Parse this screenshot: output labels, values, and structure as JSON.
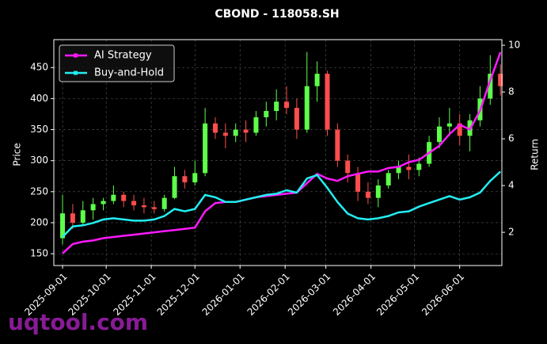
{
  "chart_data": {
    "type": "candlestick",
    "title": "CBOND - 118058.SH",
    "ylabel": "Price",
    "y2label": "Return",
    "watermark": "uqtool.com",
    "x": [
      "2025-09-01",
      "2025-09-08",
      "2025-09-15",
      "2025-09-22",
      "2025-09-29",
      "2025-10-06",
      "2025-10-13",
      "2025-10-20",
      "2025-10-27",
      "2025-11-03",
      "2025-11-10",
      "2025-11-17",
      "2025-11-24",
      "2025-12-01",
      "2025-12-08",
      "2025-12-15",
      "2025-12-22",
      "2025-12-29",
      "2026-01-05",
      "2026-01-12",
      "2026-01-19",
      "2026-01-26",
      "2026-02-02",
      "2026-02-09",
      "2026-02-16",
      "2026-02-23",
      "2026-03-02",
      "2026-03-09",
      "2026-03-16",
      "2026-03-23",
      "2026-03-30",
      "2026-04-06",
      "2026-04-13",
      "2026-04-20",
      "2026-04-27",
      "2026-05-04",
      "2026-05-11",
      "2026-05-18",
      "2026-05-25",
      "2026-06-01",
      "2026-06-08",
      "2026-06-15",
      "2026-06-22",
      "2026-06-29"
    ],
    "open": [
      175,
      215,
      200,
      220,
      230,
      235,
      245,
      235,
      228,
      225,
      222,
      240,
      275,
      265,
      280,
      360,
      345,
      340,
      350,
      345,
      370,
      380,
      395,
      385,
      350,
      420,
      440,
      350,
      300,
      280,
      250,
      240,
      260,
      280,
      290,
      285,
      295,
      330,
      355,
      360,
      340,
      365,
      400,
      440
    ],
    "high": [
      245,
      230,
      235,
      240,
      240,
      260,
      250,
      245,
      240,
      235,
      245,
      290,
      285,
      300,
      385,
      370,
      360,
      360,
      365,
      380,
      395,
      415,
      420,
      400,
      475,
      460,
      445,
      360,
      310,
      290,
      265,
      270,
      285,
      300,
      310,
      305,
      340,
      370,
      385,
      375,
      375,
      420,
      470,
      455
    ],
    "low": [
      165,
      190,
      195,
      205,
      220,
      230,
      225,
      220,
      215,
      215,
      218,
      238,
      255,
      260,
      275,
      335,
      320,
      330,
      330,
      340,
      355,
      365,
      375,
      335,
      345,
      395,
      340,
      290,
      265,
      235,
      230,
      225,
      255,
      270,
      270,
      275,
      290,
      320,
      340,
      325,
      315,
      355,
      390,
      405
    ],
    "close": [
      215,
      200,
      220,
      230,
      235,
      245,
      235,
      228,
      225,
      222,
      240,
      275,
      265,
      280,
      360,
      345,
      340,
      350,
      345,
      370,
      380,
      395,
      385,
      350,
      420,
      440,
      350,
      300,
      280,
      250,
      240,
      260,
      280,
      290,
      285,
      295,
      330,
      355,
      360,
      340,
      365,
      400,
      440,
      420
    ],
    "up_color": "#5dff4a",
    "down_color": "#ff4d4d",
    "series": [
      {
        "name": "AI Strategy",
        "color": "#ff1aff",
        "axis": "y2",
        "values": [
          1.1,
          1.5,
          1.6,
          1.65,
          1.75,
          1.8,
          1.85,
          1.9,
          1.95,
          2.0,
          2.05,
          2.1,
          2.15,
          2.2,
          2.9,
          3.25,
          3.3,
          3.3,
          3.4,
          3.5,
          3.55,
          3.6,
          3.65,
          3.7,
          4.1,
          4.5,
          4.3,
          4.2,
          4.4,
          4.5,
          4.6,
          4.6,
          4.75,
          4.8,
          5.0,
          5.1,
          5.4,
          5.7,
          6.2,
          6.6,
          6.4,
          7.2,
          8.5,
          9.7
        ]
      },
      {
        "name": "Buy-and-Hold",
        "color": "#22eef2",
        "axis": "y2",
        "values": [
          1.8,
          2.25,
          2.3,
          2.4,
          2.55,
          2.6,
          2.55,
          2.5,
          2.5,
          2.55,
          2.7,
          3.0,
          2.9,
          3.0,
          3.6,
          3.5,
          3.3,
          3.3,
          3.4,
          3.5,
          3.6,
          3.65,
          3.8,
          3.7,
          4.3,
          4.45,
          3.9,
          3.3,
          2.8,
          2.6,
          2.55,
          2.6,
          2.7,
          2.85,
          2.9,
          3.1,
          3.25,
          3.4,
          3.55,
          3.4,
          3.5,
          3.7,
          4.2,
          4.6
        ]
      }
    ],
    "xlim": [
      "2025-08-26",
      "2026-06-30"
    ],
    "xticks": [
      "2025-09-01",
      "2025-10-01",
      "2025-11-01",
      "2025-12-01",
      "2026-01-01",
      "2026-02-01",
      "2026-03-01",
      "2026-04-01",
      "2026-05-01",
      "2026-06-01"
    ],
    "ylim": [
      131,
      495
    ],
    "yticks": [
      150,
      200,
      250,
      300,
      350,
      400,
      450
    ],
    "y2lim": [
      0.58,
      10.24
    ],
    "y2ticks": [
      2,
      4,
      6,
      8,
      10
    ],
    "grid": true,
    "legend": "upper left"
  }
}
